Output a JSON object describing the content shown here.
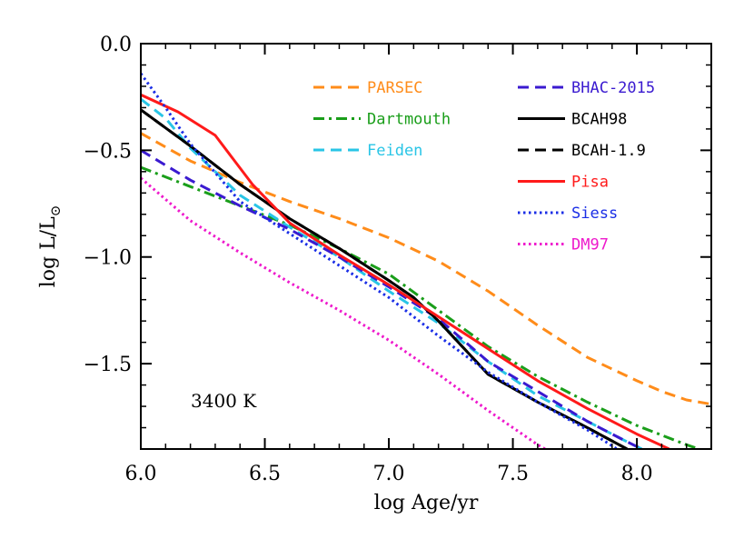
{
  "chart_data": {
    "type": "line",
    "title": "",
    "xlabel": "log Age/yr",
    "ylabel": "log L/L",
    "ylabel_subscript": "⊙",
    "xlim": [
      6.0,
      8.3
    ],
    "ylim": [
      -1.9,
      0.0
    ],
    "xticks": [
      6.0,
      6.5,
      7.0,
      7.5,
      8.0
    ],
    "xtick_labels": [
      "6.0",
      "6.5",
      "7.0",
      "7.5",
      "8.0"
    ],
    "yticks": [
      0.0,
      -0.5,
      -1.0,
      -1.5
    ],
    "ytick_labels": [
      "0.0",
      "−0.5",
      "−1.0",
      "−1.5"
    ],
    "annotation": "3400 K",
    "series": [
      {
        "name": "PARSEC",
        "color": "#ff8c1a",
        "dash": "dashed",
        "x": [
          6.0,
          6.2,
          6.4,
          6.6,
          6.8,
          7.0,
          7.2,
          7.4,
          7.6,
          7.8,
          8.0,
          8.1,
          8.2,
          8.3
        ],
        "y": [
          -0.42,
          -0.55,
          -0.65,
          -0.74,
          -0.82,
          -0.91,
          -1.02,
          -1.16,
          -1.32,
          -1.47,
          -1.58,
          -1.63,
          -1.67,
          -1.69
        ]
      },
      {
        "name": "Dartmouth",
        "color": "#1a9e1a",
        "dash": "dashdot",
        "x": [
          6.0,
          6.2,
          6.4,
          6.6,
          6.8,
          7.0,
          7.2,
          7.4,
          7.6,
          7.8,
          8.0,
          8.2,
          8.25
        ],
        "y": [
          -0.58,
          -0.67,
          -0.76,
          -0.85,
          -0.96,
          -1.08,
          -1.25,
          -1.42,
          -1.56,
          -1.68,
          -1.79,
          -1.88,
          -1.9
        ]
      },
      {
        "name": "Feiden",
        "color": "#29c5e6",
        "dash": "dashed",
        "x": [
          6.0,
          6.1,
          6.2,
          6.4,
          6.6,
          6.8,
          7.0,
          7.2,
          7.4,
          7.6,
          7.8,
          7.95,
          8.02
        ],
        "y": [
          -0.26,
          -0.35,
          -0.49,
          -0.71,
          -0.86,
          -1.0,
          -1.16,
          -1.31,
          -1.49,
          -1.65,
          -1.77,
          -1.86,
          -1.9
        ]
      },
      {
        "name": "BHAC-2015",
        "color": "#3a1ad0",
        "dash": "dashed",
        "x": [
          6.0,
          6.2,
          6.4,
          6.6,
          6.8,
          7.0,
          7.2,
          7.4,
          7.6,
          7.8,
          7.95,
          8.02
        ],
        "y": [
          -0.5,
          -0.64,
          -0.76,
          -0.87,
          -1.0,
          -1.14,
          -1.29,
          -1.49,
          -1.63,
          -1.77,
          -1.86,
          -1.9
        ]
      },
      {
        "name": "BCAH98",
        "color": "#000000",
        "dash": "solid",
        "x": [
          6.0,
          6.2,
          6.4,
          6.6,
          6.8,
          7.0,
          7.1,
          7.2,
          7.4,
          7.6,
          7.8,
          7.96
        ],
        "y": [
          -0.31,
          -0.48,
          -0.66,
          -0.82,
          -0.96,
          -1.11,
          -1.19,
          -1.3,
          -1.55,
          -1.68,
          -1.8,
          -1.9
        ]
      },
      {
        "name": "BCAH-1.9",
        "color": "#000000",
        "dash": "dashed",
        "x": [
          6.0,
          6.2,
          6.4,
          6.6,
          6.8,
          7.0,
          7.1,
          7.2,
          7.4,
          7.6,
          7.8,
          7.96
        ],
        "y": [
          -0.31,
          -0.48,
          -0.66,
          -0.82,
          -0.96,
          -1.11,
          -1.19,
          -1.3,
          -1.55,
          -1.68,
          -1.8,
          -1.9
        ]
      },
      {
        "name": "Pisa",
        "color": "#ff1a1a",
        "dash": "solid",
        "x": [
          6.0,
          6.15,
          6.3,
          6.45,
          6.6,
          6.8,
          7.0,
          7.2,
          7.4,
          7.6,
          7.8,
          8.0,
          8.13
        ],
        "y": [
          -0.24,
          -0.32,
          -0.43,
          -0.66,
          -0.84,
          -0.99,
          -1.13,
          -1.28,
          -1.43,
          -1.58,
          -1.71,
          -1.83,
          -1.9
        ]
      },
      {
        "name": "Siess",
        "color": "#1a2ee6",
        "dash": "dotted",
        "x": [
          6.0,
          6.1,
          6.2,
          6.4,
          6.6,
          6.8,
          7.0,
          7.2,
          7.4,
          7.6,
          7.8,
          7.92
        ],
        "y": [
          -0.14,
          -0.3,
          -0.47,
          -0.74,
          -0.89,
          -1.04,
          -1.19,
          -1.37,
          -1.54,
          -1.68,
          -1.81,
          -1.9
        ]
      },
      {
        "name": "DM97",
        "color": "#ee1acc",
        "dash": "dotted",
        "x": [
          6.0,
          6.2,
          6.4,
          6.6,
          6.8,
          7.0,
          7.2,
          7.4,
          7.6,
          7.63
        ],
        "y": [
          -0.63,
          -0.83,
          -0.98,
          -1.12,
          -1.25,
          -1.39,
          -1.55,
          -1.72,
          -1.88,
          -1.9
        ]
      }
    ],
    "legend": {
      "placement": "top-right",
      "columns": [
        [
          "PARSEC",
          "Dartmouth",
          "Feiden"
        ],
        [
          "BHAC-2015",
          "BCAH98",
          "BCAH-1.9",
          "Pisa",
          "Siess",
          "DM97"
        ]
      ]
    }
  }
}
